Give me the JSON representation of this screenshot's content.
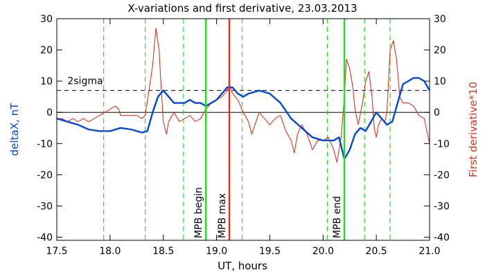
{
  "chart_data": {
    "type": "line",
    "title": "X-variations and first derivative, 23.03.2013",
    "xlabel": "UT, hours",
    "ylabel_left": "deltaX, nT",
    "ylabel_right": "First derivative*10",
    "xlim": [
      17.5,
      21.0
    ],
    "ylim": [
      -41,
      30
    ],
    "x_ticks": [
      "17.5",
      "18.0",
      "18.5",
      "19.0",
      "19.5",
      "20.0",
      "20.5",
      "21.0"
    ],
    "x_tick_values": [
      17.5,
      18.0,
      18.5,
      19.0,
      19.5,
      20.0,
      20.5,
      21.0
    ],
    "y_ticks": [
      "30",
      "20",
      "10",
      "0",
      "-10",
      "-20",
      "-30",
      "-40"
    ],
    "y_tick_values": [
      30,
      20,
      10,
      0,
      -10,
      -20,
      -30,
      -40
    ],
    "colors": {
      "deltaX": "#0047d6",
      "derivative": "#e0301e",
      "markers": "#22dd22",
      "mpb_max": "#e0301e",
      "left_label": "#0047d6",
      "right_label": "#e0301e"
    },
    "sigma_line": {
      "label": "2sigma",
      "value": 7
    },
    "vertical_markers": [
      {
        "label": "MPB begin",
        "x": 18.9,
        "color": "#22dd22"
      },
      {
        "label": "MPB max",
        "x": 19.12,
        "color": "#e0301e"
      },
      {
        "label": "MPB end",
        "x": 20.2,
        "color": "#22dd22"
      }
    ],
    "dashed_verticals": [
      17.94,
      18.33,
      18.69,
      19.24,
      20.04,
      20.39,
      20.63
    ],
    "series": [
      {
        "name": "deltaX, nT",
        "points": [
          [
            17.5,
            -2
          ],
          [
            17.6,
            -3
          ],
          [
            17.7,
            -4
          ],
          [
            17.8,
            -5.5
          ],
          [
            17.9,
            -6
          ],
          [
            18.0,
            -6
          ],
          [
            18.1,
            -5
          ],
          [
            18.2,
            -5.5
          ],
          [
            18.3,
            -6.5
          ],
          [
            18.35,
            -6
          ],
          [
            18.4,
            0
          ],
          [
            18.45,
            5
          ],
          [
            18.5,
            7
          ],
          [
            18.55,
            5
          ],
          [
            18.6,
            3
          ],
          [
            18.7,
            3
          ],
          [
            18.75,
            4
          ],
          [
            18.8,
            3
          ],
          [
            18.85,
            3
          ],
          [
            18.9,
            2
          ],
          [
            19.0,
            4
          ],
          [
            19.1,
            8
          ],
          [
            19.15,
            8
          ],
          [
            19.2,
            6
          ],
          [
            19.25,
            5
          ],
          [
            19.3,
            6
          ],
          [
            19.4,
            7
          ],
          [
            19.5,
            6
          ],
          [
            19.6,
            3
          ],
          [
            19.7,
            -2
          ],
          [
            19.8,
            -5
          ],
          [
            19.9,
            -8
          ],
          [
            20.0,
            -9
          ],
          [
            20.1,
            -9
          ],
          [
            20.15,
            -8
          ],
          [
            20.2,
            -15
          ],
          [
            20.25,
            -12
          ],
          [
            20.3,
            -7
          ],
          [
            20.35,
            -5
          ],
          [
            20.4,
            -6
          ],
          [
            20.45,
            -3
          ],
          [
            20.5,
            0
          ],
          [
            20.55,
            -2
          ],
          [
            20.6,
            -4
          ],
          [
            20.65,
            -3
          ],
          [
            20.7,
            3
          ],
          [
            20.75,
            9
          ],
          [
            20.8,
            10
          ],
          [
            20.85,
            11
          ],
          [
            20.9,
            11
          ],
          [
            20.95,
            10
          ],
          [
            21.0,
            7
          ]
        ]
      },
      {
        "name": "First derivative*10",
        "points": [
          [
            17.5,
            -2
          ],
          [
            17.55,
            -2
          ],
          [
            17.6,
            -3
          ],
          [
            17.65,
            -2
          ],
          [
            17.7,
            -3
          ],
          [
            17.75,
            -2
          ],
          [
            17.8,
            -3
          ],
          [
            17.85,
            -2
          ],
          [
            17.9,
            -1
          ],
          [
            17.95,
            0
          ],
          [
            18.0,
            1
          ],
          [
            18.05,
            2
          ],
          [
            18.08,
            1
          ],
          [
            18.1,
            -1
          ],
          [
            18.15,
            -1
          ],
          [
            18.2,
            -1
          ],
          [
            18.25,
            -1
          ],
          [
            18.3,
            -2
          ],
          [
            18.33,
            -1
          ],
          [
            18.37,
            8
          ],
          [
            18.4,
            15
          ],
          [
            18.43,
            27
          ],
          [
            18.46,
            20
          ],
          [
            18.48,
            8
          ],
          [
            18.5,
            -3
          ],
          [
            18.53,
            -7
          ],
          [
            18.55,
            -3
          ],
          [
            18.6,
            0
          ],
          [
            18.65,
            -3
          ],
          [
            18.7,
            -2
          ],
          [
            18.75,
            -1
          ],
          [
            18.8,
            -3
          ],
          [
            18.85,
            -2
          ],
          [
            18.9,
            1
          ],
          [
            18.95,
            3
          ],
          [
            19.0,
            4
          ],
          [
            19.05,
            5
          ],
          [
            19.1,
            7
          ],
          [
            19.12,
            9
          ],
          [
            19.15,
            6
          ],
          [
            19.2,
            4
          ],
          [
            19.25,
            0
          ],
          [
            19.3,
            -3
          ],
          [
            19.33,
            -7
          ],
          [
            19.38,
            -2
          ],
          [
            19.4,
            0
          ],
          [
            19.45,
            -2
          ],
          [
            19.5,
            -4
          ],
          [
            19.55,
            -2
          ],
          [
            19.6,
            -1
          ],
          [
            19.65,
            -6
          ],
          [
            19.7,
            -9
          ],
          [
            19.73,
            -13
          ],
          [
            19.76,
            -7
          ],
          [
            19.8,
            -4
          ],
          [
            19.85,
            -7
          ],
          [
            19.9,
            -12
          ],
          [
            19.95,
            -9
          ],
          [
            20.0,
            -9
          ],
          [
            20.05,
            -8
          ],
          [
            20.1,
            -12
          ],
          [
            20.13,
            -16
          ],
          [
            20.17,
            -8
          ],
          [
            20.2,
            5
          ],
          [
            20.22,
            17
          ],
          [
            20.25,
            14
          ],
          [
            20.28,
            8
          ],
          [
            20.3,
            1
          ],
          [
            20.33,
            -4
          ],
          [
            20.37,
            3
          ],
          [
            20.4,
            10
          ],
          [
            20.43,
            13
          ],
          [
            20.46,
            5
          ],
          [
            20.48,
            -5
          ],
          [
            20.5,
            -8
          ],
          [
            20.52,
            -4
          ],
          [
            20.55,
            -2
          ],
          [
            20.58,
            -3
          ],
          [
            20.6,
            0
          ],
          [
            20.63,
            20
          ],
          [
            20.66,
            23
          ],
          [
            20.69,
            17
          ],
          [
            20.72,
            5
          ],
          [
            20.75,
            3
          ],
          [
            20.8,
            3
          ],
          [
            20.85,
            2
          ],
          [
            20.9,
            -1
          ],
          [
            20.95,
            -2
          ],
          [
            21.0,
            -10
          ]
        ]
      }
    ]
  }
}
